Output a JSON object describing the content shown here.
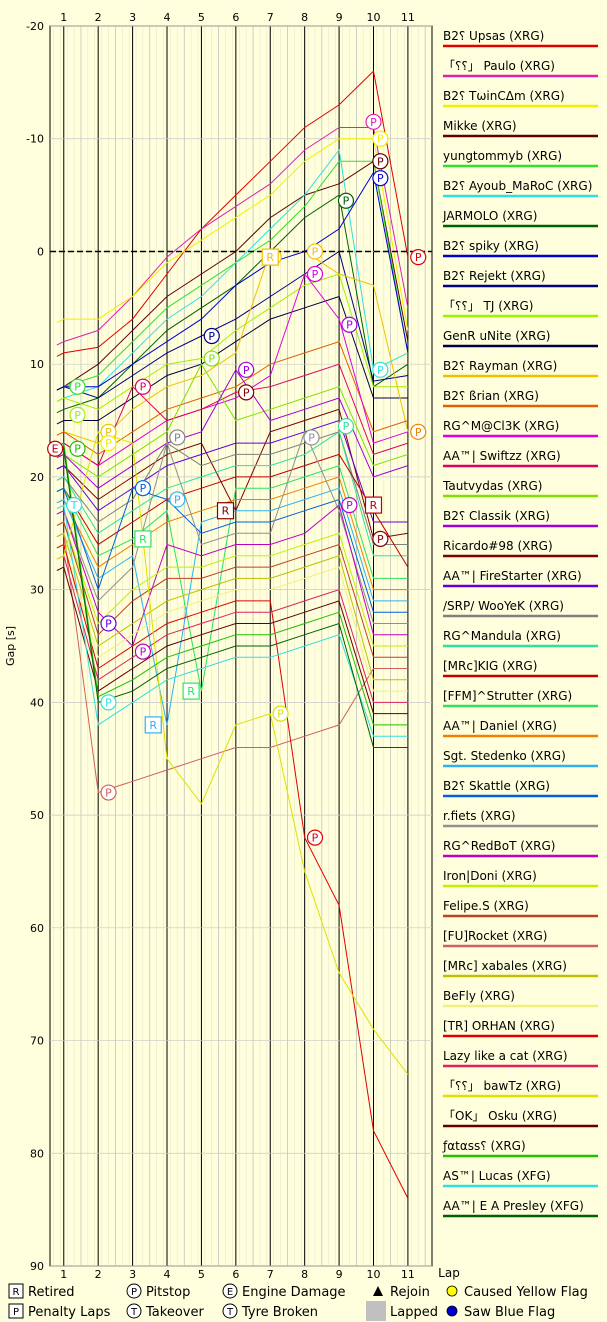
{
  "chart_data": {
    "type": "line",
    "title": "",
    "xlabel": "Lap",
    "ylabel": "Gap [s]",
    "x_ticks": [
      1,
      2,
      3,
      4,
      5,
      6,
      7,
      8,
      9,
      10,
      11
    ],
    "y_ticks": [
      -20,
      -10,
      0,
      10,
      20,
      30,
      40,
      50,
      60,
      70,
      80,
      90
    ],
    "xlim": [
      0.6,
      11.7
    ],
    "ylim": [
      -20,
      90
    ],
    "y_inverted": true,
    "grid": true,
    "legend_position": "right",
    "series": [
      {
        "name": "B2⸮ Upsas (XRG)",
        "color": "#e00000",
        "values": [
          9,
          8.5,
          6,
          2,
          -2,
          -5,
          -8,
          -11,
          -13,
          -16,
          0.5
        ]
      },
      {
        "name": "「⸮⸮」 Paulo (XRG)",
        "color": "#e020b0",
        "values": [
          8,
          7,
          4,
          0.5,
          -2,
          -4,
          -6,
          -9,
          -11,
          -11,
          5
        ]
      },
      {
        "name": "B2⸮ TωinCΔm (XRG)",
        "color": "#f0f000",
        "values": [
          6,
          6,
          4,
          1,
          -1,
          -3,
          -5,
          -8,
          -10,
          -10,
          7
        ]
      },
      {
        "name": "Mikke (XRG)",
        "color": "#600000",
        "values": [
          12,
          10,
          7,
          4,
          2,
          0,
          -3,
          -5,
          -6,
          -8,
          8
        ]
      },
      {
        "name": "yungtommyb (XRG)",
        "color": "#30e030",
        "values": [
          12,
          11,
          8,
          5,
          3,
          1,
          -1,
          -4,
          -8,
          -8,
          9
        ]
      },
      {
        "name": "B2⸮ Ayoub_MaRoC (XRG)",
        "color": "#30e0e0",
        "values": [
          13,
          12,
          9,
          6,
          4,
          1,
          -2,
          -5,
          -9,
          10.5,
          9
        ]
      },
      {
        "name": "JARMOLO (XRG)",
        "color": "#006000",
        "values": [
          14,
          13,
          10,
          7,
          5,
          3,
          0,
          -3,
          -5,
          12,
          10
        ]
      },
      {
        "name": "B2⸮ spiky (XRG)",
        "color": "#0000d0",
        "values": [
          12,
          12,
          10,
          8,
          6,
          3,
          1,
          0,
          -2,
          -7,
          9
        ]
      },
      {
        "name": "B2⸮ Rejekt (XRG)",
        "color": "#000080",
        "values": [
          12,
          13,
          11,
          9,
          7.5,
          6,
          4,
          2,
          0,
          11.5,
          11
        ]
      },
      {
        "name": "「⸮⸮」  TJ (XRG)",
        "color": "#a0f000",
        "values": [
          13,
          14,
          12,
          10,
          9.5,
          7,
          5,
          3,
          2,
          12,
          12
        ]
      },
      {
        "name": "GenR uNite (XRG)",
        "color": "#000040",
        "values": [
          15,
          15,
          13,
          11,
          10,
          8,
          6,
          5,
          4,
          13,
          13
        ]
      },
      {
        "name": "B2⸮ Rayman (XRG)",
        "color": "#f0c000",
        "values": [
          16,
          17,
          14,
          12,
          11,
          9,
          0,
          0,
          2,
          3,
          16
        ]
      },
      {
        "name": "B2⸮ ßrian (XRG)",
        "color": "#e06000",
        "values": [
          16,
          18,
          16,
          14,
          13,
          12,
          10,
          9,
          8,
          16,
          15
        ]
      },
      {
        "name": "RG^M@Cl3K (XRG)",
        "color": "#e000e0",
        "values": [
          17,
          19,
          17,
          15,
          14,
          13,
          11,
          2,
          6,
          17,
          16
        ]
      },
      {
        "name": "AA™| Swiftzz (XRG)",
        "color": "#e00060",
        "values": [
          17,
          19,
          12,
          15,
          14,
          12.5,
          12,
          11,
          10,
          18,
          17
        ]
      },
      {
        "name": "Tautvydas (XRG)",
        "color": "#80e000",
        "values": [
          18,
          20,
          18,
          16,
          10,
          15,
          14,
          13,
          12,
          19,
          18
        ]
      },
      {
        "name": "B2⸮ Classik (XRG)",
        "color": "#a000e0",
        "values": [
          18,
          21,
          19,
          17,
          16,
          10.5,
          15,
          14,
          13,
          20,
          19
        ]
      },
      {
        "name": "Ricardo#98 (XRG)",
        "color": "#800000",
        "values": [
          19,
          22,
          20,
          18,
          17,
          23,
          16,
          15,
          14,
          25.5,
          25
        ]
      },
      {
        "name": "AA™| FireStarter (XRG)",
        "color": "#6000e0",
        "values": [
          19,
          23,
          21,
          19,
          18,
          17,
          17,
          16,
          15,
          24,
          24
        ]
      },
      {
        "name": "/SRP/ WooYeK (XRG)",
        "color": "#808080",
        "values": [
          20,
          24,
          22,
          17,
          19,
          18,
          18,
          17,
          16,
          26,
          26
        ]
      },
      {
        "name": "RG^Mandula (XRG)",
        "color": "#30e0a0",
        "values": [
          20,
          25,
          23,
          21,
          20,
          19,
          19,
          18,
          16,
          27,
          27
        ]
      },
      {
        "name": "[MRc]KIG (XRG)",
        "color": "#c00000",
        "values": [
          21,
          26,
          24,
          22,
          21,
          20,
          20,
          19,
          18,
          23,
          28
        ]
      },
      {
        "name": "[FFM]^Strutter (XRG)",
        "color": "#30e060",
        "values": [
          21,
          27,
          25.5,
          23,
          39,
          21,
          21,
          20,
          19,
          29,
          29
        ]
      },
      {
        "name": "AA™| Daniel (XRG)",
        "color": "#f08000",
        "values": [
          22,
          28,
          26,
          24,
          23,
          22,
          22,
          21,
          20,
          30,
          30
        ]
      },
      {
        "name": "Sgt. Stedenko (XRG)",
        "color": "#30b0f0",
        "values": [
          22,
          29,
          27,
          42,
          24,
          23,
          23,
          22,
          21,
          31,
          31
        ]
      },
      {
        "name": "B2⸮ Skattle (XRG)",
        "color": "#0060e0",
        "values": [
          21,
          30,
          21,
          22,
          25,
          24,
          24,
          23,
          22,
          32,
          32
        ]
      },
      {
        "name": "r.fiets (XRG)",
        "color": "#909090",
        "values": [
          23,
          31,
          28,
          17,
          26,
          25,
          25,
          16,
          23,
          33,
          33
        ]
      },
      {
        "name": "RG^RedBoT (XRG)",
        "color": "#c000c0",
        "values": [
          23,
          32,
          35,
          26,
          27,
          26,
          26,
          25,
          22.5,
          34,
          34
        ]
      },
      {
        "name": "Iron|Doni (XRG)",
        "color": "#c0f000",
        "values": [
          24,
          33,
          30,
          28,
          28,
          27,
          27,
          26,
          25,
          35,
          35
        ]
      },
      {
        "name": "Felipe.S (XRG)",
        "color": "#c04020",
        "values": [
          24,
          34,
          31,
          29,
          29,
          28,
          28,
          27,
          26,
          36,
          36
        ]
      },
      {
        "name": "[FU]Rocket (XRG)",
        "color": "#d06060",
        "values": [
          25,
          48,
          47,
          46,
          45,
          44,
          44,
          43,
          42,
          37,
          37
        ]
      },
      {
        "name": "[MRc] xabales (XRG)",
        "color": "#c0c000",
        "values": [
          25,
          35,
          33,
          31,
          30,
          29,
          29,
          28,
          27,
          38,
          38
        ]
      },
      {
        "name": "BeFly (XRG)",
        "color": "#f0f080",
        "values": [
          26,
          36,
          34,
          32,
          31,
          30,
          30,
          29,
          28,
          39,
          39
        ]
      },
      {
        "name": "[TR] ORHAN (XRG)",
        "color": "#e00000",
        "values": [
          26,
          37,
          35,
          33,
          32,
          31,
          31,
          52,
          58,
          78,
          84
        ]
      },
      {
        "name": "Lazy like a cat (XRG)",
        "color": "#e02060",
        "values": [
          27,
          38,
          36,
          34,
          33,
          32,
          32,
          31,
          30,
          40,
          40
        ]
      },
      {
        "name": "「⸮⸮」 bawTz (XRG)",
        "color": "#e0e000",
        "values": [
          27,
          16,
          17,
          45,
          49,
          42,
          41,
          55,
          64,
          69,
          73
        ]
      },
      {
        "name": "「OK」 Osku (XRG)",
        "color": "#600000",
        "values": [
          28,
          39,
          37,
          35,
          34,
          33,
          33,
          32,
          31,
          41,
          41
        ]
      },
      {
        "name": "ƒαtαss⸮ (XRG)",
        "color": "#20c000",
        "values": [
          17,
          39.5,
          38,
          36,
          35,
          34,
          34,
          33,
          32,
          42,
          42
        ]
      },
      {
        "name": "AS™| Lucas (XFG)",
        "color": "#30e0e0",
        "values": [
          22.5,
          42,
          40,
          38,
          37,
          36,
          36,
          35,
          34,
          43,
          43
        ]
      },
      {
        "name": "AA™| E A Presley (XFG)",
        "color": "#006000",
        "values": [
          17.5,
          40,
          39,
          37,
          36,
          35,
          35,
          34,
          33,
          44,
          44
        ]
      }
    ],
    "event_legend": [
      {
        "symbol": "R",
        "label": "Retired"
      },
      {
        "symbol": "P",
        "label": "Pitstop"
      },
      {
        "symbol": "E",
        "label": "Engine Damage"
      },
      {
        "symbol": "▲",
        "label": "Rejoin"
      },
      {
        "symbol": "",
        "label": "Caused Yellow Flag",
        "color": "#ffff00"
      },
      {
        "symbol": "P",
        "label": "Penalty Laps"
      },
      {
        "symbol": "T",
        "label": "Takeover"
      },
      {
        "symbol": "T",
        "label": "Tyre Broken"
      },
      {
        "symbol": "",
        "label": "Lapped",
        "color": "#c0c0c0"
      },
      {
        "symbol": "",
        "label": "Saw Blue Flag",
        "color": "#0000d0"
      }
    ],
    "markers": [
      {
        "type": "P",
        "x": 10.0,
        "y": -11.5,
        "series": 1
      },
      {
        "type": "P",
        "x": 10.2,
        "y": -10,
        "series": 2
      },
      {
        "type": "P",
        "x": 10.2,
        "y": -8,
        "series": 3
      },
      {
        "type": "P",
        "x": 10.2,
        "y": -6.5,
        "series": 7
      },
      {
        "type": "P",
        "x": 9.2,
        "y": -4.5,
        "series": 6
      },
      {
        "type": "P",
        "x": 11.3,
        "y": 0.5,
        "series": 0
      },
      {
        "type": "P",
        "x": 8.3,
        "y": 0,
        "series": 11
      },
      {
        "type": "P",
        "x": 8.3,
        "y": 2,
        "series": 13
      },
      {
        "type": "P",
        "x": 7.1,
        "y": 0.5,
        "series": 11
      },
      {
        "type": "P",
        "x": 5.3,
        "y": 7.5,
        "series": 8
      },
      {
        "type": "P",
        "x": 9.3,
        "y": 6.5,
        "series": 16
      },
      {
        "type": "P",
        "x": 10.2,
        "y": 10.5,
        "series": 5
      },
      {
        "type": "P",
        "x": 5.3,
        "y": 9.5,
        "series": 15
      },
      {
        "type": "P",
        "x": 6.3,
        "y": 10.5,
        "series": 16
      },
      {
        "type": "P",
        "x": 6.3,
        "y": 12.5,
        "series": 17
      },
      {
        "type": "P",
        "x": 3.3,
        "y": 12,
        "series": 14
      },
      {
        "type": "P",
        "x": 1.4,
        "y": 12,
        "series": 4
      },
      {
        "type": "P",
        "x": 1.4,
        "y": 14.5,
        "series": 9
      },
      {
        "type": "P",
        "x": 2.3,
        "y": 16,
        "series": 11
      },
      {
        "type": "P",
        "x": 2.3,
        "y": 17,
        "series": 2
      },
      {
        "type": "P",
        "x": 1.4,
        "y": 17.5,
        "series": 37
      },
      {
        "type": "P",
        "x": 4.3,
        "y": 16.5,
        "series": 19
      },
      {
        "type": "P",
        "x": 8.2,
        "y": 16.5,
        "series": 26
      },
      {
        "type": "P",
        "x": 9.2,
        "y": 15.5,
        "series": 20
      },
      {
        "type": "P",
        "x": 3.3,
        "y": 21,
        "series": 25
      },
      {
        "type": "P",
        "x": 4.3,
        "y": 22,
        "series": 24
      },
      {
        "type": "P",
        "x": 9.3,
        "y": 22.5,
        "series": 27
      },
      {
        "type": "P",
        "x": 10.2,
        "y": 25.5,
        "series": 17
      },
      {
        "type": "P",
        "x": 2.3,
        "y": 33,
        "series": 18
      },
      {
        "type": "P",
        "x": 3.3,
        "y": 35.5,
        "series": 27
      },
      {
        "type": "P",
        "x": 2.3,
        "y": 40,
        "series": 38
      },
      {
        "type": "P",
        "x": 7.3,
        "y": 41,
        "series": 35
      },
      {
        "type": "P",
        "x": 2.3,
        "y": 48,
        "series": 30
      },
      {
        "type": "P",
        "x": 8.3,
        "y": 52,
        "series": 33
      },
      {
        "type": "P",
        "x": 11.3,
        "y": 16,
        "series": 23
      },
      {
        "type": "R",
        "x": 10.0,
        "y": 22.5,
        "series": 21
      },
      {
        "type": "R",
        "x": 5.7,
        "y": 23,
        "series": 17
      },
      {
        "type": "R",
        "x": 3.3,
        "y": 25.5,
        "series": 22
      },
      {
        "type": "R",
        "x": 4.7,
        "y": 39,
        "series": 22
      },
      {
        "type": "R",
        "x": 3.6,
        "y": 42,
        "series": 24
      },
      {
        "type": "R",
        "x": 7.0,
        "y": 0.5,
        "series": 11
      },
      {
        "type": "E",
        "x": 0.75,
        "y": 17.5,
        "series": 21
      },
      {
        "type": "T",
        "x": 1.3,
        "y": 22.5,
        "series": 38
      }
    ]
  }
}
